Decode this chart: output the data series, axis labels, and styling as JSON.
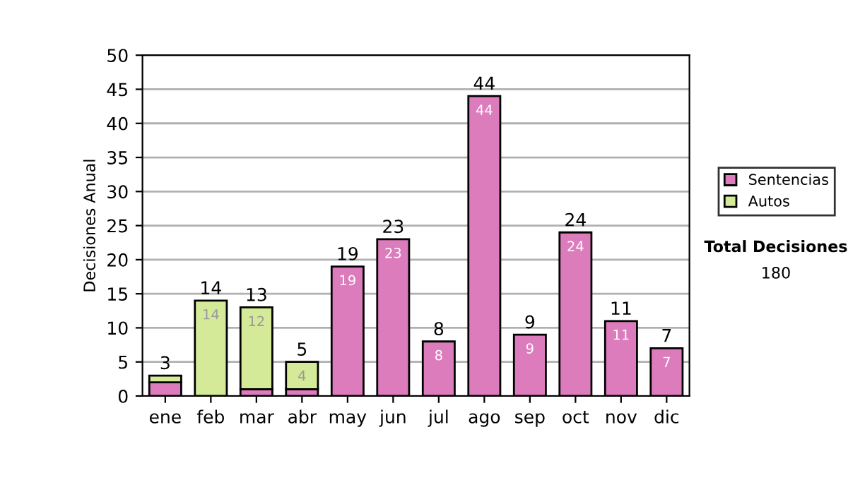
{
  "chart_data": {
    "type": "bar",
    "stacked": true,
    "ylabel": "Decisiones Anual",
    "categories": [
      "ene",
      "feb",
      "mar",
      "abr",
      "may",
      "jun",
      "jul",
      "ago",
      "sep",
      "oct",
      "nov",
      "dic"
    ],
    "series": [
      {
        "name": "Sentencias",
        "color": "#dd7cbd",
        "values": [
          2,
          0,
          1,
          1,
          19,
          23,
          8,
          44,
          9,
          24,
          11,
          7
        ],
        "value_labels": [
          null,
          null,
          null,
          null,
          "19",
          "23",
          "8",
          "44",
          "9",
          "24",
          "11",
          "7"
        ]
      },
      {
        "name": "Autos",
        "color": "#d4ea98",
        "values": [
          1,
          14,
          12,
          4,
          0,
          0,
          0,
          0,
          0,
          0,
          0,
          0
        ],
        "value_labels": [
          null,
          "14",
          "12",
          "4",
          null,
          null,
          null,
          null,
          null,
          null,
          null,
          null
        ]
      }
    ],
    "totals": [
      "3",
      "14",
      "13",
      "5",
      "19",
      "23",
      "8",
      "44",
      "9",
      "24",
      "11",
      "7"
    ],
    "ylim": [
      0,
      50
    ],
    "yticks": [
      0,
      5,
      10,
      15,
      20,
      25,
      30,
      35,
      40,
      45,
      50
    ],
    "grid": "y",
    "legend": "right",
    "annotations": [
      "Total Decisiones",
      "180"
    ]
  }
}
